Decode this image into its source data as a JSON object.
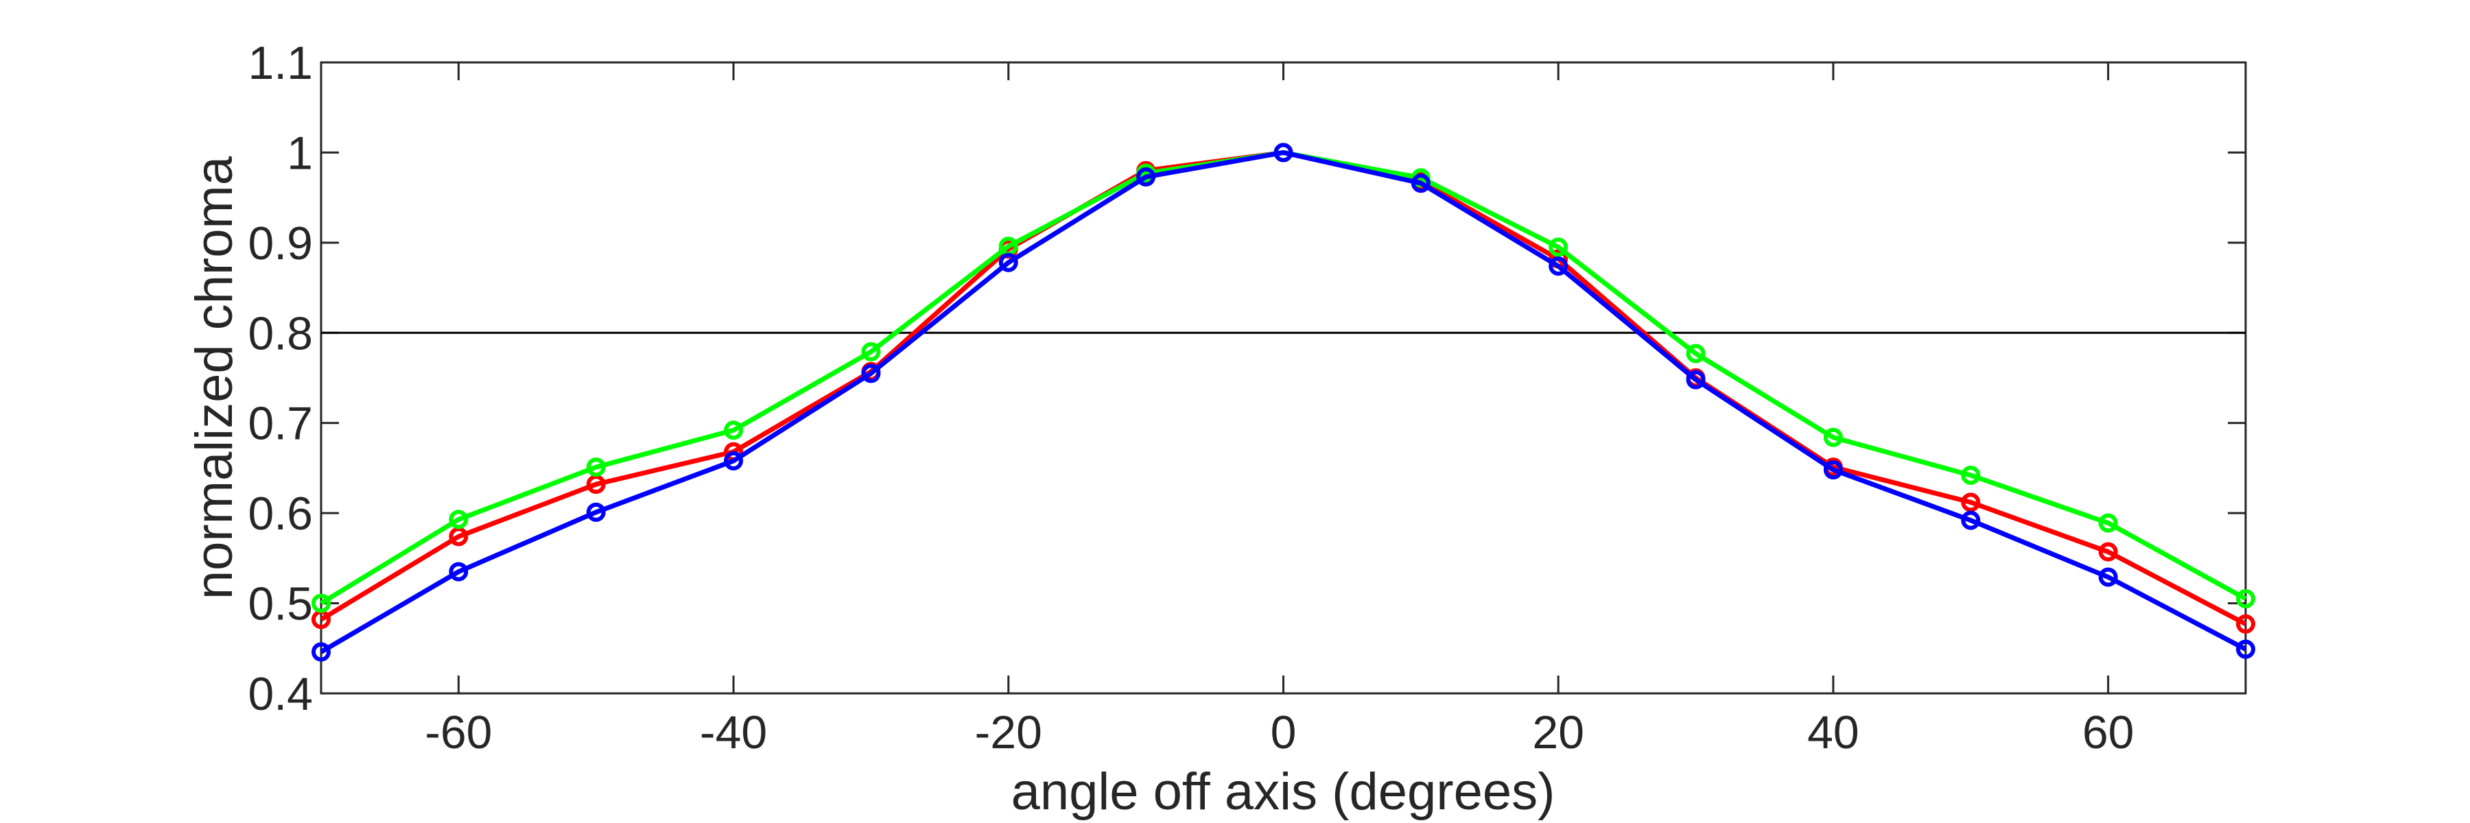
{
  "chart_data": {
    "type": "line",
    "title": "",
    "xlabel": "angle off axis (degrees)",
    "ylabel": "normalized chroma",
    "xlim": [
      -70,
      70
    ],
    "ylim": [
      0.4,
      1.1
    ],
    "xticks": [
      -60,
      -40,
      -20,
      0,
      20,
      40,
      60
    ],
    "yticks": [
      0.4,
      0.5,
      0.6,
      0.7,
      0.8,
      0.9,
      1,
      1.1
    ],
    "grid": false,
    "reference_line": {
      "y": 0.8,
      "color": "#000000"
    },
    "x": [
      -70,
      -60,
      -50,
      -40,
      -30,
      -20,
      -10,
      0,
      10,
      20,
      30,
      40,
      50,
      60,
      70
    ],
    "series": [
      {
        "color": "#ff0000",
        "values": [
          0.482,
          0.574,
          0.632,
          0.668,
          0.757,
          0.893,
          0.98,
          1.0,
          0.968,
          0.882,
          0.75,
          0.651,
          0.612,
          0.557,
          0.477
        ]
      },
      {
        "color": "#00ff00",
        "values": [
          0.5,
          0.593,
          0.651,
          0.692,
          0.779,
          0.896,
          0.977,
          1.0,
          0.972,
          0.895,
          0.777,
          0.684,
          0.642,
          0.589,
          0.505
        ]
      },
      {
        "color": "#0000ff",
        "values": [
          0.446,
          0.535,
          0.601,
          0.658,
          0.755,
          0.878,
          0.973,
          1.0,
          0.966,
          0.874,
          0.748,
          0.648,
          0.592,
          0.529,
          0.449
        ]
      }
    ]
  }
}
